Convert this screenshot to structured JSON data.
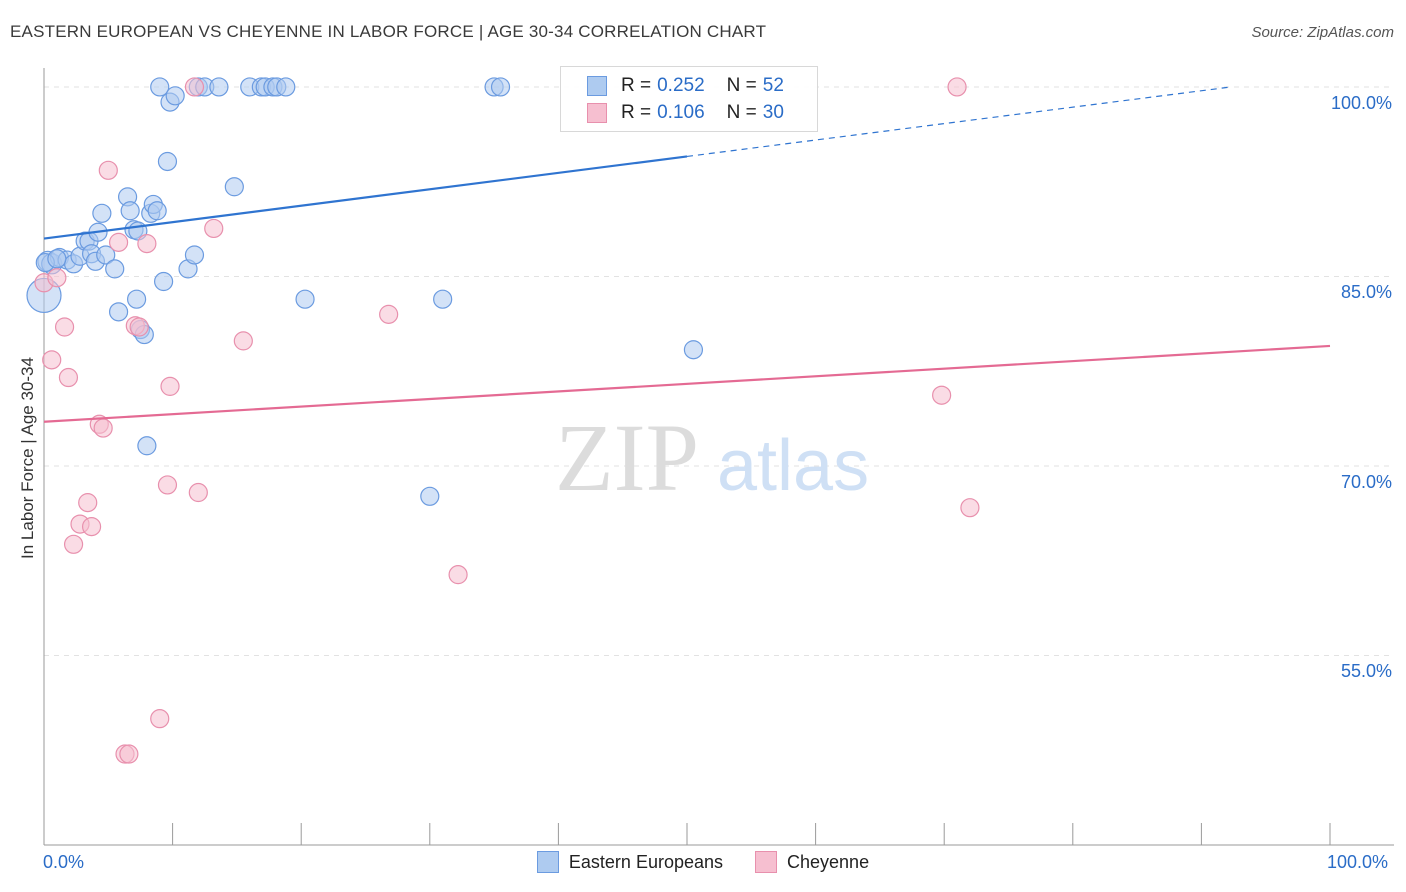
{
  "header": {
    "title": "EASTERN EUROPEAN VS CHEYENNE IN LABOR FORCE | AGE 30-34 CORRELATION CHART",
    "source": "Source: ZipAtlas.com"
  },
  "watermark": {
    "zip": "ZIP",
    "atlas": "atlas"
  },
  "legend": {
    "rows": [
      {
        "r_label": "R =",
        "r_value": "0.252",
        "n_label": "N =",
        "n_value": "52"
      },
      {
        "r_label": "R =",
        "r_value": "0.106",
        "n_label": "N =",
        "n_value": "30"
      }
    ]
  },
  "colors": {
    "blue_fill": "#aecbf0",
    "blue_stroke": "#6b9be0",
    "blue_line": "#2f74d0",
    "pink_fill": "#f6bfd0",
    "pink_stroke": "#e890ad",
    "pink_line": "#e46a93",
    "grid": "#e2e2e2",
    "tick_text": "#2a6cc7"
  },
  "chart_data": {
    "type": "scatter",
    "ylabel": "In Labor Force | Age 30-34",
    "x_tick_labels": [
      "0.0%",
      "100.0%"
    ],
    "y_tick_labels": [
      "100.0%",
      "85.0%",
      "70.0%",
      "55.0%"
    ],
    "y_ticks": [
      100,
      85,
      70,
      55
    ],
    "xlim": [
      0,
      100
    ],
    "ylim": [
      40,
      101.5
    ],
    "grid": true,
    "legend_position": "top-center",
    "series": [
      {
        "name": "Eastern Europeans",
        "points": [
          [
            0.0,
            83.5
          ],
          [
            0.3,
            86.2
          ],
          [
            0.6,
            86.0
          ],
          [
            1.2,
            86.5
          ],
          [
            1.8,
            86.3
          ],
          [
            2.3,
            86.0
          ],
          [
            2.8,
            86.6
          ],
          [
            3.2,
            87.8
          ],
          [
            3.5,
            87.8
          ],
          [
            3.7,
            86.8
          ],
          [
            4.0,
            86.2
          ],
          [
            4.2,
            88.5
          ],
          [
            4.5,
            90.0
          ],
          [
            4.8,
            86.7
          ],
          [
            5.5,
            85.6
          ],
          [
            5.8,
            82.2
          ],
          [
            6.5,
            91.3
          ],
          [
            6.7,
            90.2
          ],
          [
            7.0,
            88.7
          ],
          [
            7.2,
            83.2
          ],
          [
            7.5,
            80.8
          ],
          [
            7.8,
            80.4
          ],
          [
            8.0,
            71.6
          ],
          [
            8.3,
            90.0
          ],
          [
            8.5,
            90.7
          ],
          [
            8.8,
            90.2
          ],
          [
            9.0,
            100.0
          ],
          [
            9.3,
            84.6
          ],
          [
            9.6,
            94.1
          ],
          [
            9.8,
            98.8
          ],
          [
            10.2,
            99.3
          ],
          [
            11.2,
            85.6
          ],
          [
            11.7,
            86.7
          ],
          [
            12.0,
            100.0
          ],
          [
            12.5,
            100.0
          ],
          [
            13.6,
            100.0
          ],
          [
            14.8,
            92.1
          ],
          [
            16.0,
            100.0
          ],
          [
            16.9,
            100.0
          ],
          [
            17.2,
            100.0
          ],
          [
            17.8,
            100.0
          ],
          [
            18.1,
            100.0
          ],
          [
            18.8,
            100.0
          ],
          [
            20.3,
            83.2
          ],
          [
            30.0,
            67.6
          ],
          [
            31.0,
            83.2
          ],
          [
            35.0,
            100.0
          ],
          [
            35.5,
            100.0
          ],
          [
            50.5,
            79.2
          ],
          [
            0.1,
            86.1
          ],
          [
            1.0,
            86.4
          ],
          [
            7.3,
            88.6
          ]
        ],
        "sizes": [
          34,
          20,
          20,
          18,
          18,
          18,
          18,
          18,
          18,
          18,
          18,
          18,
          18,
          18,
          18,
          18,
          18,
          18,
          18,
          18,
          18,
          18,
          18,
          18,
          18,
          18,
          18,
          18,
          18,
          18,
          18,
          18,
          18,
          18,
          18,
          18,
          18,
          18,
          18,
          18,
          18,
          18,
          18,
          18,
          18,
          18,
          18,
          18,
          18,
          18,
          18,
          18
        ],
        "trend": {
          "x": [
            0,
            100
          ],
          "y": [
            88.0,
            101.0
          ],
          "solid_until": 50
        }
      },
      {
        "name": "Cheyenne",
        "points": [
          [
            0.0,
            84.5
          ],
          [
            0.6,
            78.4
          ],
          [
            1.0,
            84.9
          ],
          [
            1.6,
            81.0
          ],
          [
            1.9,
            77.0
          ],
          [
            2.3,
            63.8
          ],
          [
            2.8,
            65.4
          ],
          [
            3.4,
            67.1
          ],
          [
            3.7,
            65.2
          ],
          [
            4.3,
            73.3
          ],
          [
            4.6,
            73.0
          ],
          [
            5.0,
            93.4
          ],
          [
            5.8,
            87.7
          ],
          [
            6.3,
            47.2
          ],
          [
            6.6,
            47.2
          ],
          [
            7.1,
            81.1
          ],
          [
            7.4,
            81.0
          ],
          [
            8.0,
            87.6
          ],
          [
            9.0,
            50.0
          ],
          [
            9.6,
            68.5
          ],
          [
            9.8,
            76.3
          ],
          [
            11.7,
            100.0
          ],
          [
            12.0,
            67.9
          ],
          [
            13.2,
            88.8
          ],
          [
            15.5,
            79.9
          ],
          [
            26.8,
            82.0
          ],
          [
            32.2,
            61.4
          ],
          [
            69.8,
            75.6
          ],
          [
            71.0,
            100.0
          ],
          [
            72.0,
            66.7
          ]
        ],
        "sizes": [
          18,
          18,
          18,
          18,
          18,
          18,
          18,
          18,
          18,
          18,
          18,
          18,
          18,
          18,
          18,
          18,
          18,
          18,
          18,
          18,
          18,
          18,
          18,
          18,
          18,
          18,
          18,
          18,
          18,
          18
        ],
        "trend": {
          "x": [
            0,
            100
          ],
          "y": [
            73.5,
            79.5
          ],
          "solid_until": 100
        }
      }
    ]
  }
}
